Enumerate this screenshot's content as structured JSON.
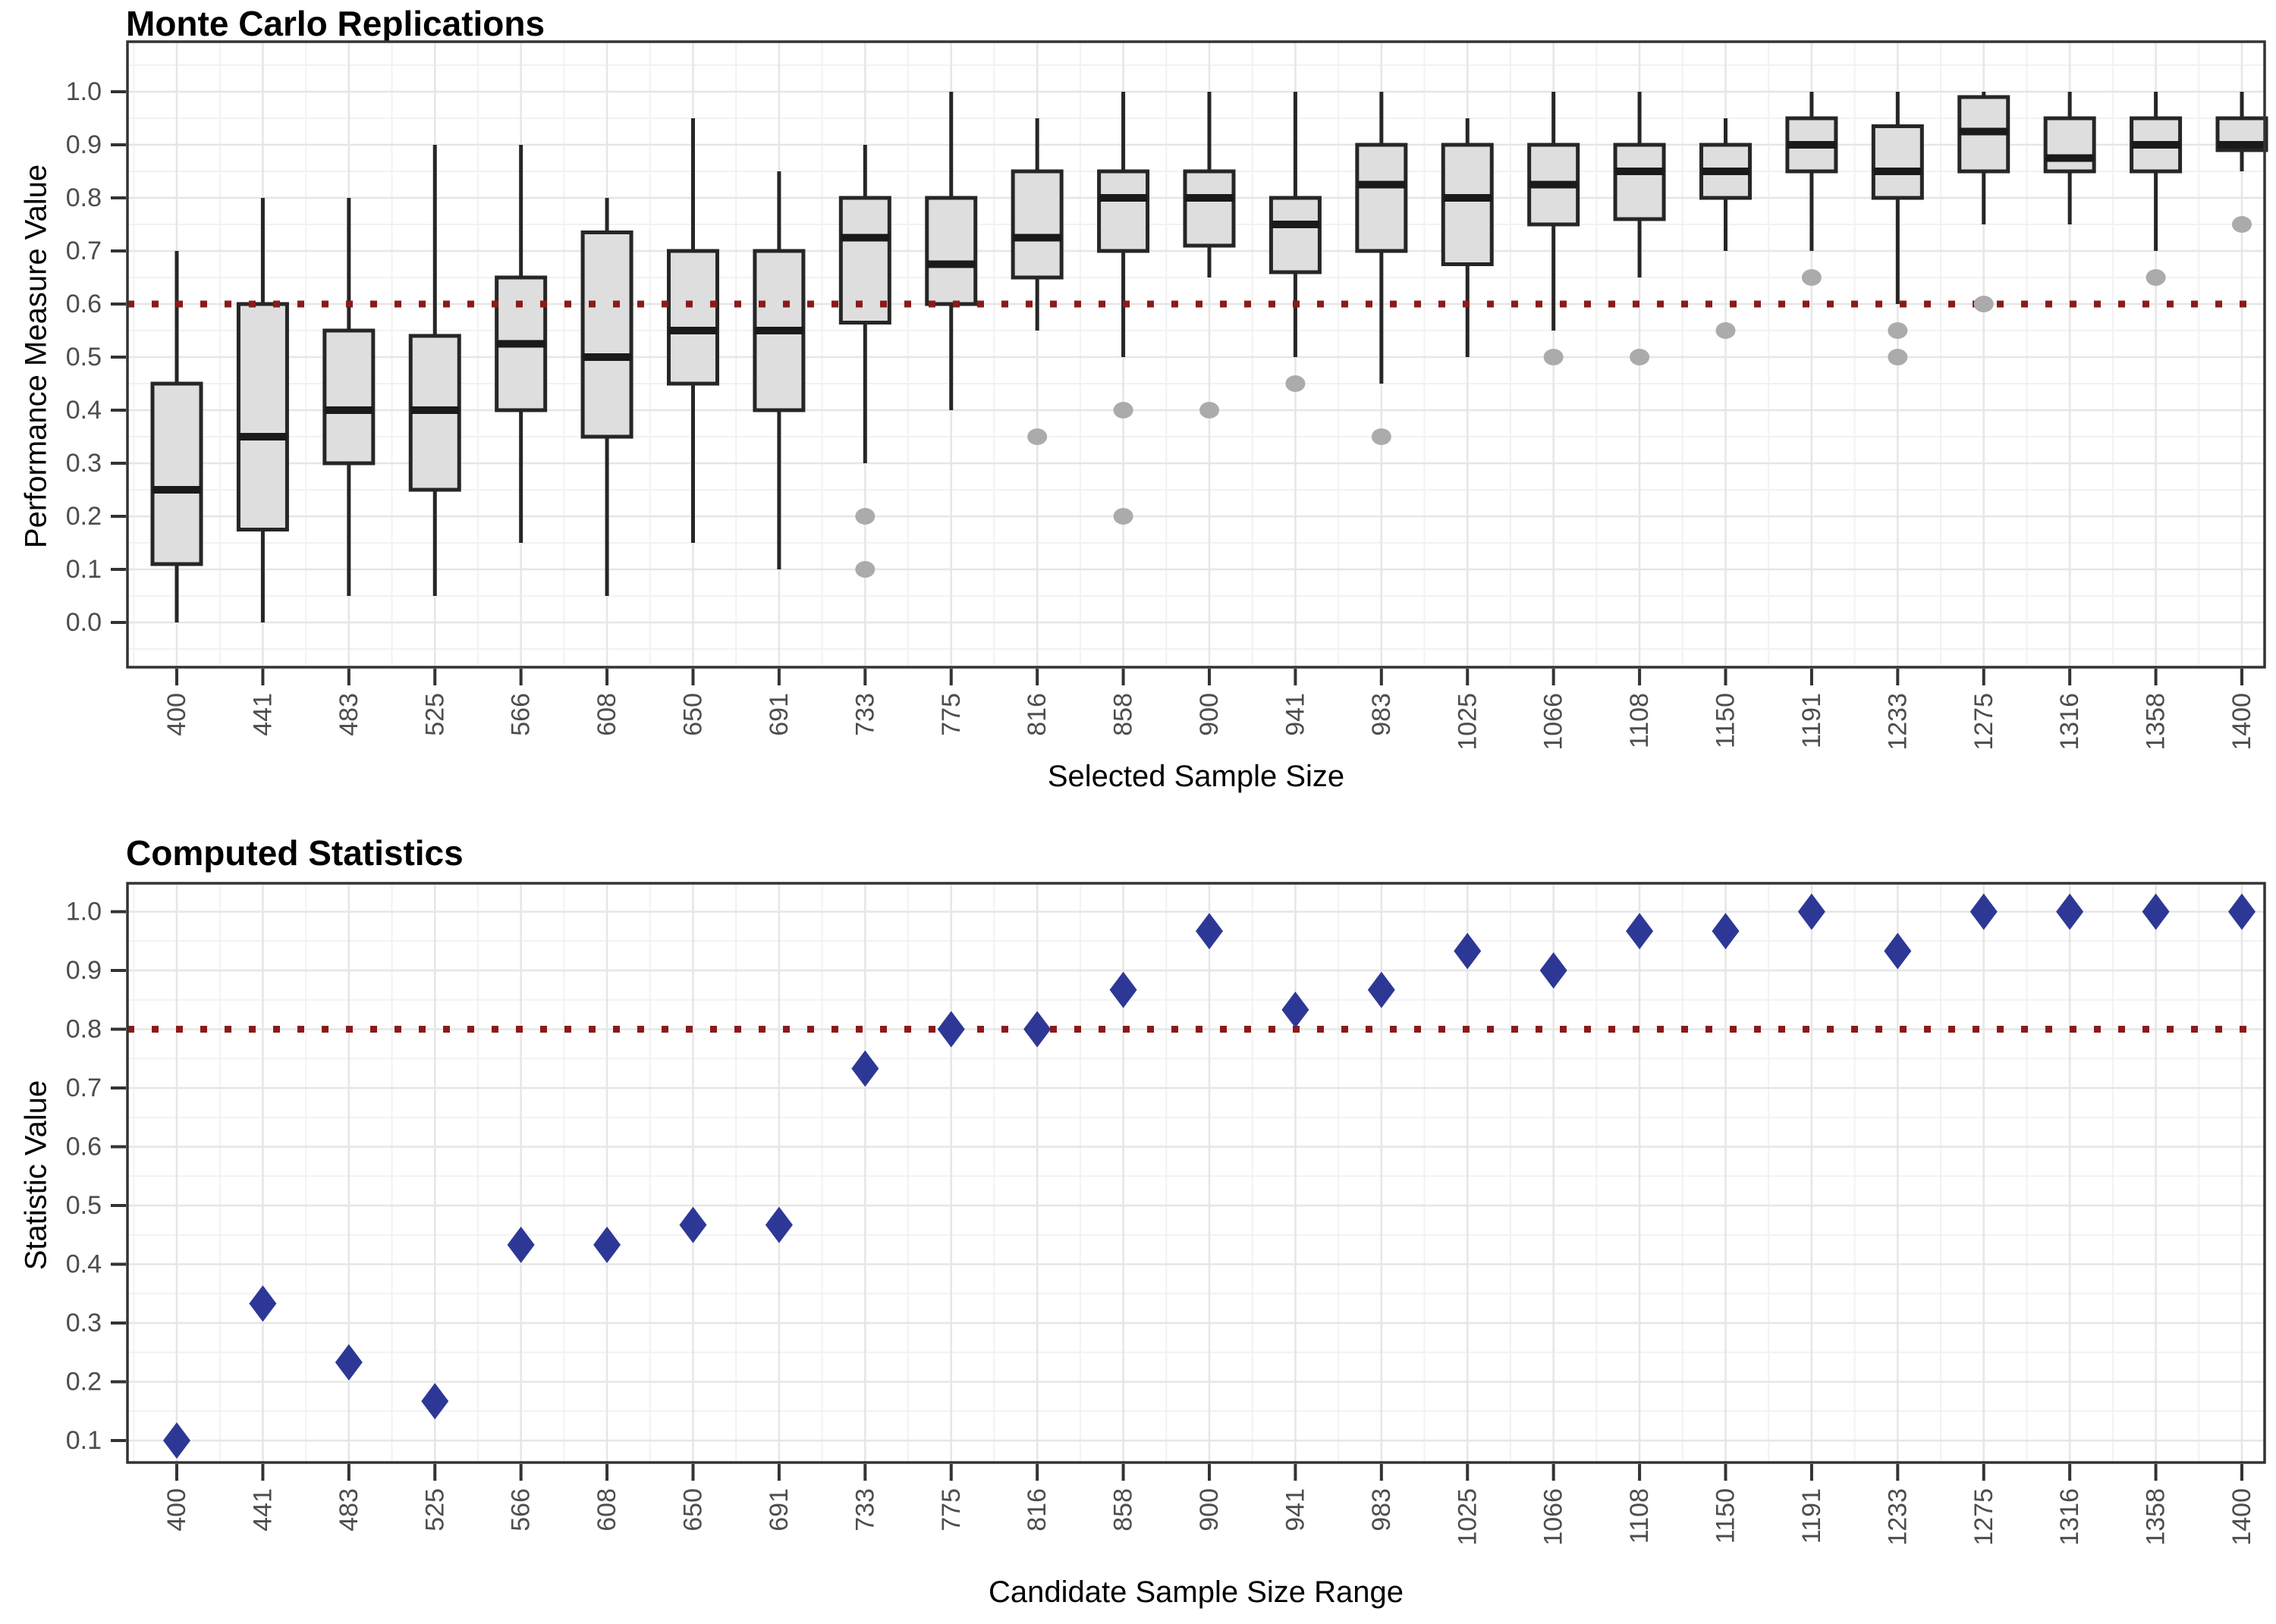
{
  "chart_data": [
    {
      "type": "boxplot",
      "title": "Monte Carlo Replications",
      "xlabel": "Selected Sample Size",
      "ylabel": "Performance Measure Value",
      "ylim": [
        0.0,
        1.0
      ],
      "ytick_labels": [
        "0.0",
        "0.1",
        "0.2",
        "0.3",
        "0.4",
        "0.5",
        "0.6",
        "0.7",
        "0.8",
        "0.9",
        "1.0"
      ],
      "threshold": 0.6,
      "threshold_color": "#8B1A1A",
      "grid": "on",
      "legend": "none",
      "categories": [
        "400",
        "441",
        "483",
        "525",
        "566",
        "608",
        "650",
        "691",
        "733",
        "775",
        "816",
        "858",
        "900",
        "941",
        "983",
        "1025",
        "1066",
        "1108",
        "1150",
        "1191",
        "1233",
        "1275",
        "1316",
        "1358",
        "1400"
      ],
      "boxes": [
        {
          "low": 0.0,
          "q1": 0.11,
          "median": 0.25,
          "q3": 0.45,
          "high": 0.7,
          "outliers": []
        },
        {
          "low": 0.0,
          "q1": 0.175,
          "median": 0.35,
          "q3": 0.6,
          "high": 0.8,
          "outliers": []
        },
        {
          "low": 0.05,
          "q1": 0.3,
          "median": 0.4,
          "q3": 0.55,
          "high": 0.8,
          "outliers": []
        },
        {
          "low": 0.05,
          "q1": 0.25,
          "median": 0.4,
          "q3": 0.54,
          "high": 0.9,
          "outliers": []
        },
        {
          "low": 0.15,
          "q1": 0.4,
          "median": 0.525,
          "q3": 0.65,
          "high": 0.9,
          "outliers": []
        },
        {
          "low": 0.05,
          "q1": 0.35,
          "median": 0.5,
          "q3": 0.735,
          "high": 0.8,
          "outliers": []
        },
        {
          "low": 0.15,
          "q1": 0.45,
          "median": 0.55,
          "q3": 0.7,
          "high": 0.95,
          "outliers": []
        },
        {
          "low": 0.1,
          "q1": 0.4,
          "median": 0.55,
          "q3": 0.7,
          "high": 0.85,
          "outliers": []
        },
        {
          "low": 0.3,
          "q1": 0.565,
          "median": 0.725,
          "q3": 0.8,
          "high": 0.9,
          "outliers": [
            0.2,
            0.1
          ]
        },
        {
          "low": 0.4,
          "q1": 0.6,
          "median": 0.675,
          "q3": 0.8,
          "high": 1.0,
          "outliers": []
        },
        {
          "low": 0.55,
          "q1": 0.65,
          "median": 0.725,
          "q3": 0.85,
          "high": 0.95,
          "outliers": [
            0.35
          ]
        },
        {
          "low": 0.5,
          "q1": 0.7,
          "median": 0.8,
          "q3": 0.85,
          "high": 1.0,
          "outliers": [
            0.4,
            0.2
          ]
        },
        {
          "low": 0.65,
          "q1": 0.71,
          "median": 0.8,
          "q3": 0.85,
          "high": 1.0,
          "outliers": [
            0.4
          ]
        },
        {
          "low": 0.5,
          "q1": 0.66,
          "median": 0.75,
          "q3": 0.8,
          "high": 1.0,
          "outliers": [
            0.45
          ]
        },
        {
          "low": 0.45,
          "q1": 0.7,
          "median": 0.825,
          "q3": 0.9,
          "high": 1.0,
          "outliers": [
            0.35
          ]
        },
        {
          "low": 0.5,
          "q1": 0.675,
          "median": 0.8,
          "q3": 0.9,
          "high": 0.95,
          "outliers": []
        },
        {
          "low": 0.55,
          "q1": 0.75,
          "median": 0.825,
          "q3": 0.9,
          "high": 1.0,
          "outliers": [
            0.5
          ]
        },
        {
          "low": 0.65,
          "q1": 0.76,
          "median": 0.85,
          "q3": 0.9,
          "high": 1.0,
          "outliers": [
            0.5
          ]
        },
        {
          "low": 0.7,
          "q1": 0.8,
          "median": 0.85,
          "q3": 0.9,
          "high": 0.95,
          "outliers": [
            0.55
          ]
        },
        {
          "low": 0.7,
          "q1": 0.85,
          "median": 0.9,
          "q3": 0.95,
          "high": 1.0,
          "outliers": [
            0.65
          ]
        },
        {
          "low": 0.6,
          "q1": 0.8,
          "median": 0.85,
          "q3": 0.935,
          "high": 1.0,
          "outliers": [
            0.55,
            0.5
          ]
        },
        {
          "low": 0.75,
          "q1": 0.85,
          "median": 0.925,
          "q3": 0.99,
          "high": 1.0,
          "outliers": [
            0.6
          ]
        },
        {
          "low": 0.75,
          "q1": 0.85,
          "median": 0.875,
          "q3": 0.95,
          "high": 1.0,
          "outliers": []
        },
        {
          "low": 0.7,
          "q1": 0.85,
          "median": 0.9,
          "q3": 0.95,
          "high": 1.0,
          "outliers": [
            0.65
          ]
        },
        {
          "low": 0.85,
          "q1": 0.89,
          "median": 0.9,
          "q3": 0.95,
          "high": 1.0,
          "outliers": [
            0.75
          ]
        }
      ]
    },
    {
      "type": "scatter",
      "title": "Computed Statistics",
      "xlabel": "Candidate Sample Size Range",
      "ylabel": "Statistic Value",
      "ylim": [
        0.1,
        1.0
      ],
      "ytick_labels": [
        "0.1",
        "0.2",
        "0.3",
        "0.4",
        "0.5",
        "0.6",
        "0.7",
        "0.8",
        "0.9",
        "1.0"
      ],
      "threshold": 0.8,
      "threshold_color": "#8B1A1A",
      "grid": "on",
      "legend": "none",
      "marker": "diamond",
      "point_color": "#2D3896",
      "categories": [
        "400",
        "441",
        "483",
        "525",
        "566",
        "608",
        "650",
        "691",
        "733",
        "775",
        "816",
        "858",
        "900",
        "941",
        "983",
        "1025",
        "1066",
        "1108",
        "1150",
        "1191",
        "1233",
        "1275",
        "1316",
        "1358",
        "1400"
      ],
      "values": [
        0.1,
        0.333,
        0.233,
        0.167,
        0.433,
        0.433,
        0.467,
        0.467,
        0.733,
        0.8,
        0.8,
        0.867,
        0.967,
        0.833,
        0.867,
        0.933,
        0.9,
        0.967,
        0.967,
        1.0,
        0.933,
        1.0,
        1.0,
        1.0,
        1.0
      ]
    }
  ],
  "style": {
    "box_fill": "#DEDEDE",
    "box_border": "#262626",
    "median_color": "#1A1A1A",
    "whisker_color": "#262626",
    "outlier_color": "#ABABAB",
    "grid_major": "#E6E6E6",
    "grid_minor": "#F2F2F2",
    "axis_color": "#333333",
    "tick_label_color": "#4D4D4D",
    "panel_border": "#333333"
  }
}
